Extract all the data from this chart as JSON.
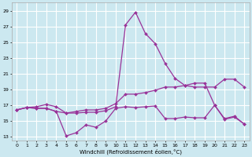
{
  "xlabel": "Windchill (Refroidissement éolien,°C)",
  "background_color": "#cce8f0",
  "grid_color": "#ffffff",
  "line_color": "#993399",
  "xlim": [
    -0.5,
    23.5
  ],
  "ylim": [
    12.5,
    30
  ],
  "yticks": [
    13,
    15,
    17,
    19,
    21,
    23,
    25,
    27,
    29
  ],
  "xticks": [
    0,
    1,
    2,
    3,
    4,
    5,
    6,
    7,
    8,
    9,
    10,
    11,
    12,
    13,
    14,
    15,
    16,
    17,
    18,
    19,
    20,
    21,
    22,
    23
  ],
  "lines": [
    {
      "x": [
        0,
        1,
        2,
        3,
        4,
        5,
        6,
        7,
        8,
        9,
        10,
        11,
        12,
        13,
        14,
        15,
        16,
        17,
        18,
        19,
        20,
        21,
        22,
        23
      ],
      "y": [
        16.4,
        16.7,
        16.6,
        16.6,
        16.2,
        13.1,
        13.5,
        14.5,
        14.2,
        15.0,
        16.6,
        16.8,
        16.7,
        16.8,
        16.9,
        15.3,
        15.3,
        15.5,
        15.4,
        15.4,
        17.0,
        15.2,
        15.5,
        14.6
      ]
    },
    {
      "x": [
        0,
        1,
        2,
        3,
        4,
        5,
        6,
        7,
        8,
        9,
        10,
        11,
        12,
        13,
        14,
        15,
        16,
        17,
        18,
        19,
        20,
        21,
        22,
        23
      ],
      "y": [
        16.4,
        16.7,
        16.6,
        16.6,
        16.2,
        16.0,
        16.0,
        16.1,
        16.1,
        16.3,
        16.8,
        27.2,
        28.8,
        26.1,
        24.8,
        22.3,
        20.4,
        19.5,
        19.3,
        19.3,
        19.3,
        20.3,
        20.3,
        19.3
      ]
    },
    {
      "x": [
        0,
        1,
        2,
        3,
        4,
        5,
        6,
        7,
        8,
        9,
        10,
        11,
        12,
        13,
        14,
        15,
        16,
        17,
        18,
        19,
        20,
        21,
        22,
        23
      ],
      "y": [
        16.4,
        16.7,
        16.8,
        17.1,
        16.8,
        16.0,
        16.2,
        16.4,
        16.4,
        16.6,
        17.2,
        18.4,
        18.4,
        18.6,
        18.9,
        19.3,
        19.3,
        19.5,
        19.8,
        19.8,
        17.0,
        15.3,
        15.6,
        14.6
      ]
    }
  ]
}
